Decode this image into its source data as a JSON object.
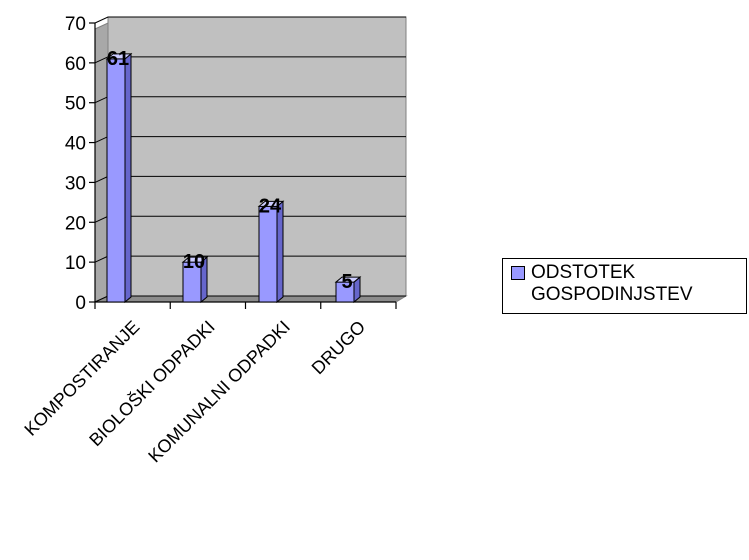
{
  "chart_data": {
    "type": "bar",
    "categories": [
      "KOMPOSTIRANJE",
      "BIOLOŠKI ODPADKI",
      "KOMUNALNI ODPADKI",
      "DRUGO"
    ],
    "series": [
      {
        "name": "ODSTOTEK GOSPODINJSTEV",
        "values": [
          61,
          10,
          24,
          5
        ]
      }
    ],
    "data_labels": [
      "61",
      "10",
      "24",
      "5"
    ],
    "ylim": [
      0,
      70
    ],
    "yticks": [
      0,
      10,
      20,
      30,
      40,
      50,
      60,
      70
    ],
    "grid": true,
    "legend_position": "right",
    "colors": {
      "bar": "#9999ff",
      "bar_side": "#6666cc",
      "bar_top": "#ccccff",
      "plot_bg": "#c0c0c0",
      "wall_side": "#a8a8a8"
    }
  }
}
